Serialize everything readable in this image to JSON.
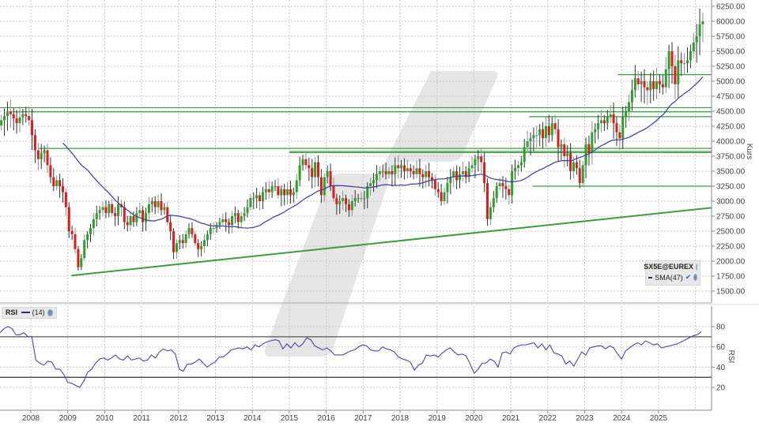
{
  "chart_data": [
    {
      "type": "candlestick",
      "title": "SX5E@EUREX",
      "instrument": "SX5E@EUREX",
      "ylabel": "Kurs",
      "ylim": [
        1500,
        6250
      ],
      "yticks": [
        "6250.00",
        "6000.00",
        "5750.00",
        "5500.00",
        "5250.00",
        "5000.00",
        "4750.00",
        "4500.00",
        "4250.00",
        "4000.00",
        "3750.00",
        "3500.00",
        "3250.00",
        "3000.00",
        "2750.00",
        "2500.00",
        "2250.00",
        "2000.00",
        "1750.00",
        "1500.00"
      ],
      "x_ticks": [
        "2008",
        "2009",
        "2010",
        "2011",
        "2012",
        "2013",
        "2014",
        "2015",
        "2016",
        "2017",
        "2018",
        "2019",
        "2020",
        "2021",
        "2022",
        "2023",
        "2024",
        "2025"
      ],
      "grid": true,
      "legend": [
        "SX5E@EUREX",
        "SMA(47)"
      ],
      "monthly_close_approx": [
        4350,
        4420,
        4500,
        4450,
        4380,
        4300,
        4400,
        4450,
        4420,
        4350,
        4100,
        3850,
        3700,
        3800,
        3850,
        3600,
        3400,
        3250,
        3350,
        3250,
        3150,
        2900,
        2500,
        2450,
        2200,
        1900,
        2050,
        2350,
        2450,
        2550,
        2700,
        2800,
        2850,
        2900,
        2800,
        2950,
        2800,
        2750,
        2950,
        2900,
        2650,
        2600,
        2750,
        2650,
        2800,
        2850,
        2650,
        2800,
        2950,
        3000,
        2900,
        3000,
        2850,
        2900,
        2650,
        2500,
        2150,
        2300,
        2350,
        2300,
        2450,
        2550,
        2450,
        2300,
        2200,
        2250,
        2350,
        2450,
        2550,
        2550,
        2600,
        2650,
        2700,
        2650,
        2600,
        2750,
        2800,
        2650,
        2750,
        2800,
        2900,
        3050,
        3050,
        3100,
        3000,
        3150,
        3200,
        3150,
        3250,
        3250,
        3100,
        3200,
        3100,
        3200,
        3100,
        3150,
        3350,
        3600,
        3700,
        3600,
        3550,
        3400,
        3650,
        3400,
        3100,
        3400,
        3500,
        3250,
        3050,
        2950,
        3000,
        3050,
        2950,
        2850,
        3000,
        3050,
        3050,
        3050,
        3050,
        3250,
        3300,
        3350,
        3450,
        3500,
        3500,
        3450,
        3500,
        3450,
        3600,
        3550,
        3600,
        3500,
        3550,
        3500,
        3450,
        3550,
        3450,
        3400,
        3500,
        3400,
        3350,
        3200,
        3150,
        3000,
        3150,
        3300,
        3400,
        3500,
        3350,
        3450,
        3500,
        3400,
        3550,
        3600,
        3700,
        3750,
        3650,
        3300,
        2700,
        2900,
        3050,
        3250,
        3300,
        3250,
        3200,
        3100,
        3500,
        3550,
        3600,
        3650,
        3900,
        4000,
        4050,
        4100,
        4100,
        4200,
        4050,
        4250,
        4100,
        4300,
        4200,
        3900,
        3950,
        3750,
        3800,
        3500,
        3650,
        3550,
        3300,
        3600,
        3950,
        3800,
        4150,
        4200,
        4300,
        4350,
        4300,
        4400,
        4450,
        4300,
        4150,
        4050,
        4400,
        4500,
        4650,
        4850,
        5050,
        4950,
        5000,
        4900,
        4850,
        5000,
        4870,
        5000,
        4950,
        4900,
        5200,
        5500,
        5250,
        4950,
        5350,
        5300,
        5300,
        5350,
        5500,
        5650,
        5750,
        5950,
        6000
      ],
      "sma_label": "SMA(47)",
      "horizontal_levels": [
        {
          "value": 4560,
          "x_from": "2007"
        },
        {
          "value": 4490,
          "x_from": "2007.5"
        },
        {
          "value": 4410,
          "x_from": "2021.5"
        },
        {
          "value": 3880,
          "x_from": "2008.2"
        },
        {
          "value": 3830,
          "x_from": "2015.0"
        },
        {
          "value": 3810,
          "x_from": "2015.0"
        },
        {
          "value": 5110,
          "x_from": "2023.9"
        },
        {
          "value": 3250,
          "x_from": "2021.6"
        }
      ],
      "trendline": {
        "from": [
          "2009.1",
          1760
        ],
        "to": [
          "2026.4",
          2890
        ]
      }
    },
    {
      "type": "line",
      "title": "RSI",
      "indicator": "RSI",
      "period": "(14)",
      "ylabel": "RSI",
      "ylim": [
        10,
        90
      ],
      "yticks": [
        "80",
        "60",
        "40",
        "20"
      ],
      "levels": [
        70,
        30
      ],
      "values_approx": [
        74,
        78,
        80,
        78,
        72,
        72,
        74,
        70,
        70,
        47,
        44,
        42,
        46,
        45,
        38,
        38,
        33,
        25,
        24,
        22,
        20,
        26,
        35,
        38,
        44,
        48,
        49,
        47,
        49,
        52,
        48,
        47,
        51,
        47,
        48,
        49,
        46,
        47,
        52,
        49,
        55,
        58,
        56,
        57,
        53,
        38,
        36,
        43,
        43,
        45,
        48,
        44,
        40,
        43,
        45,
        50,
        50,
        53,
        57,
        58,
        59,
        58,
        60,
        57,
        62,
        60,
        63,
        65,
        66,
        67,
        66,
        58,
        63,
        59,
        64,
        60,
        63,
        69,
        67,
        61,
        59,
        57,
        59,
        56,
        52,
        52,
        52,
        54,
        56,
        57,
        60,
        62,
        61,
        57,
        56,
        56,
        60,
        58,
        57,
        55,
        50,
        48,
        47,
        45,
        37,
        42,
        44,
        52,
        51,
        52,
        50,
        54,
        57,
        59,
        55,
        52,
        53,
        51,
        43,
        34,
        38,
        44,
        44,
        48,
        46,
        40,
        54,
        55,
        53,
        59,
        61,
        62,
        62,
        63,
        64,
        59,
        63,
        57,
        62,
        54,
        53,
        51,
        43,
        46,
        41,
        48,
        55,
        52,
        59,
        60,
        61,
        61,
        58,
        61,
        59,
        53,
        48,
        56,
        59,
        62,
        64,
        62,
        66,
        64,
        62,
        63,
        59,
        60,
        61,
        62,
        63,
        65,
        67,
        69,
        71,
        72,
        75
      ]
    }
  ],
  "price_panel": {
    "legend": {
      "instrument": "SX5E@EUREX",
      "sma_label": "SMA(47)"
    },
    "axis_title": "Kurs"
  },
  "rsi_panel": {
    "legend": {
      "label": "RSI",
      "period": "(14)"
    },
    "axis_title": "RSI"
  },
  "colors": {
    "up": "#2aa32a",
    "down": "#e01b1b",
    "wick": "#333333",
    "wick_gray": "#909090",
    "sma": "#3a3aa0",
    "rsi": "#4848b0",
    "levels": "#3f9b3f",
    "grid": "#c8c8c8",
    "watermark": "#e6e6e6"
  }
}
